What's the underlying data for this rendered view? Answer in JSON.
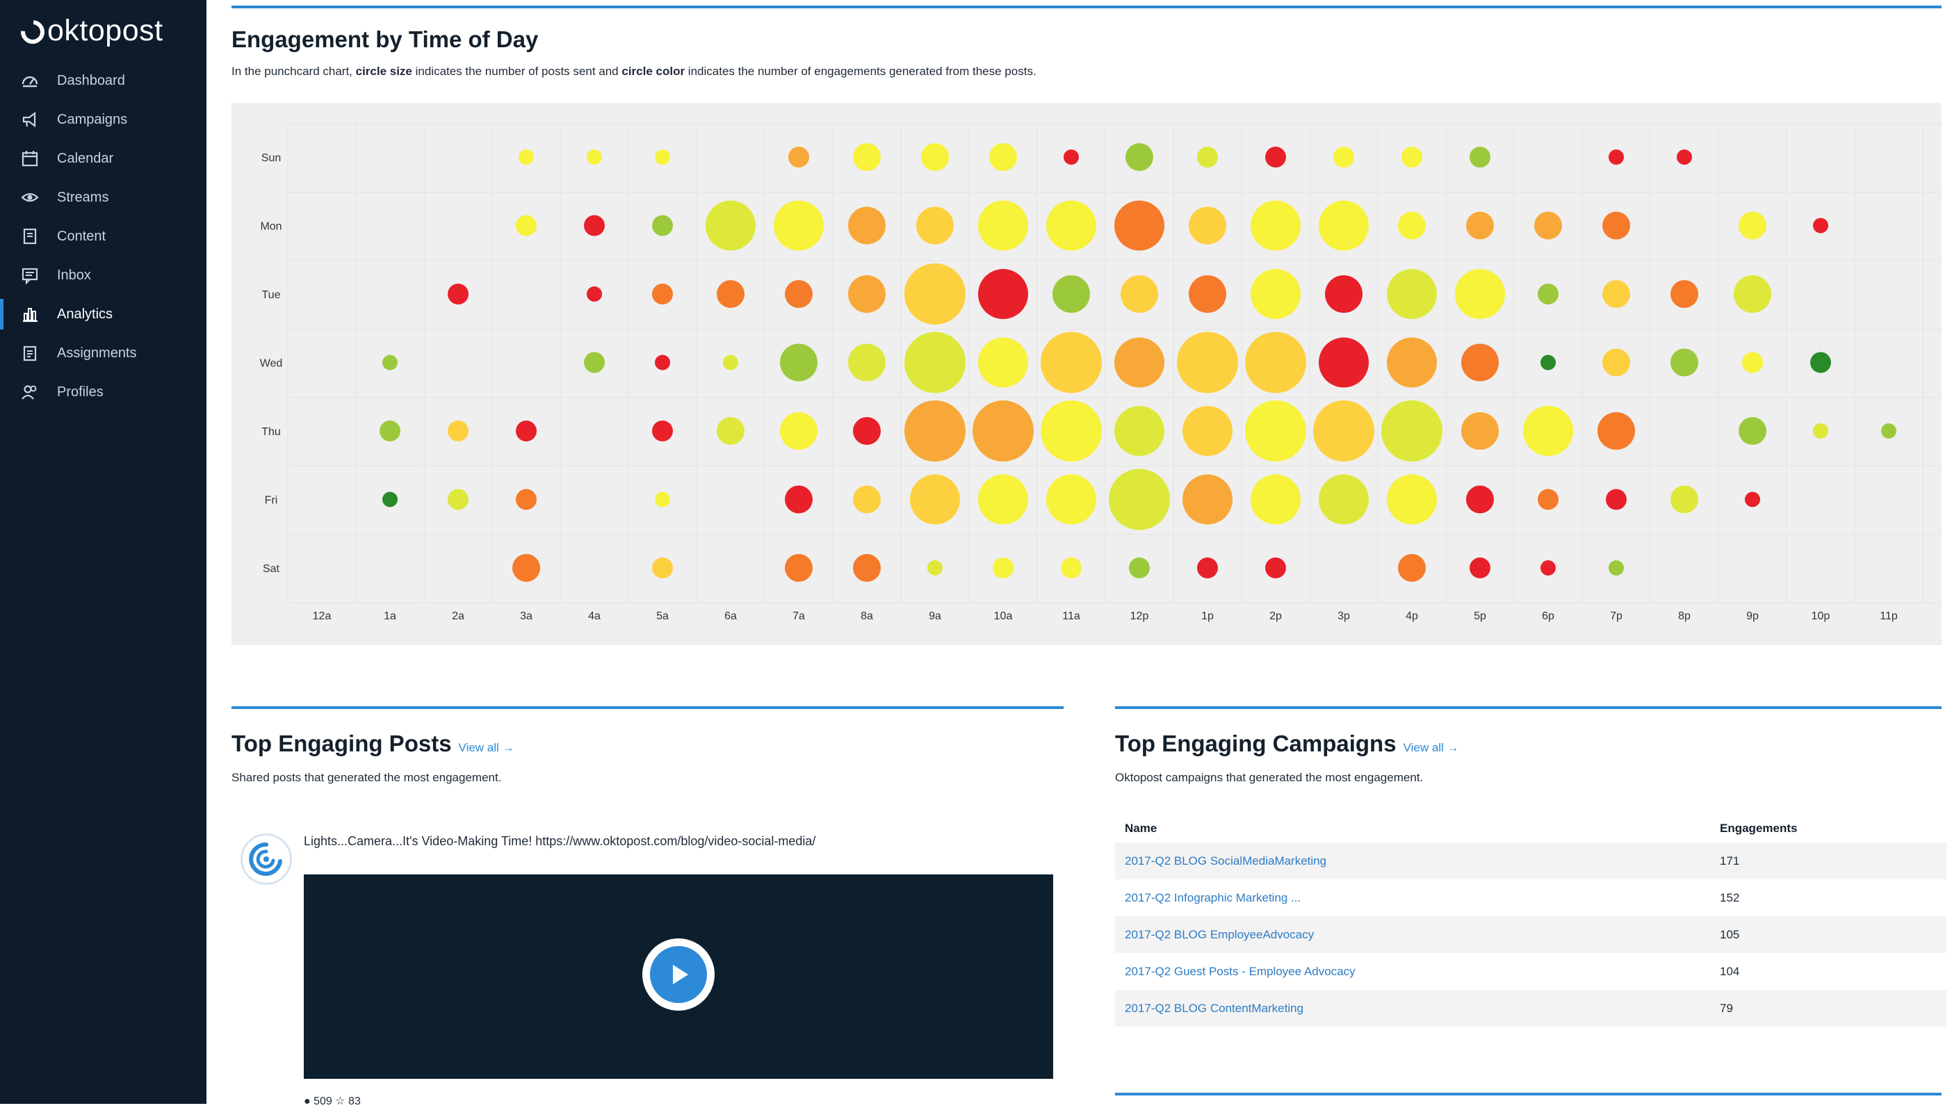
{
  "app": {
    "logo": "oktopost"
  },
  "sidebar": {
    "items": [
      {
        "label": "Dashboard",
        "icon": "dashboard-icon",
        "active": false
      },
      {
        "label": "Campaigns",
        "icon": "megaphone-icon",
        "active": false
      },
      {
        "label": "Calendar",
        "icon": "calendar-icon",
        "active": false
      },
      {
        "label": "Streams",
        "icon": "eye-icon",
        "active": false
      },
      {
        "label": "Content",
        "icon": "document-icon",
        "active": false
      },
      {
        "label": "Inbox",
        "icon": "inbox-icon",
        "active": false
      },
      {
        "label": "Analytics",
        "icon": "bar-chart-icon",
        "active": true
      },
      {
        "label": "Assignments",
        "icon": "clipboard-icon",
        "active": false
      },
      {
        "label": "Profiles",
        "icon": "users-icon",
        "active": false
      }
    ]
  },
  "engagement": {
    "title": "Engagement by Time of Day",
    "subtitle_parts": {
      "a": "In the punchcard chart, ",
      "b": "circle size",
      "c": " indicates the number of posts sent and ",
      "d": "circle color",
      "e": " indicates the number of engagements generated from these posts."
    }
  },
  "chart_data": {
    "type": "punchcard",
    "days": [
      "Sun",
      "Mon",
      "Tue",
      "Wed",
      "Thu",
      "Fri",
      "Sat"
    ],
    "hours": [
      "12a",
      "1a",
      "2a",
      "3a",
      "4a",
      "5a",
      "6a",
      "7a",
      "8a",
      "9a",
      "10a",
      "11a",
      "12p",
      "1p",
      "2p",
      "3p",
      "4p",
      "5p",
      "6p",
      "7p",
      "8p",
      "9p",
      "10p",
      "11p"
    ],
    "size_meaning": "number of posts sent",
    "color_meaning": "number of engagements generated",
    "palette": {
      "dark_green": "#2a8a2a",
      "green": "#9cc93b",
      "yellow_green": "#dde83a",
      "yellow": "#f7f23a",
      "light_orange": "#fdd040",
      "orange": "#f8a838",
      "dark_orange": "#f57a2a",
      "red": "#e8202a"
    },
    "cells": [
      [
        "Sun",
        "3a",
        1,
        "yellow"
      ],
      [
        "Sun",
        "4a",
        1,
        "yellow"
      ],
      [
        "Sun",
        "5a",
        1,
        "yellow"
      ],
      [
        "Sun",
        "7a",
        2,
        "orange"
      ],
      [
        "Sun",
        "8a",
        3,
        "yellow"
      ],
      [
        "Sun",
        "9a",
        3,
        "yellow"
      ],
      [
        "Sun",
        "10a",
        3,
        "yellow"
      ],
      [
        "Sun",
        "11a",
        1,
        "red"
      ],
      [
        "Sun",
        "12p",
        3,
        "green"
      ],
      [
        "Sun",
        "1p",
        2,
        "yellow_green"
      ],
      [
        "Sun",
        "2p",
        2,
        "red"
      ],
      [
        "Sun",
        "3p",
        2,
        "yellow"
      ],
      [
        "Sun",
        "4p",
        2,
        "yellow"
      ],
      [
        "Sun",
        "5p",
        2,
        "green"
      ],
      [
        "Sun",
        "7p",
        1,
        "red"
      ],
      [
        "Sun",
        "8p",
        1,
        "red"
      ],
      [
        "Mon",
        "3a",
        2,
        "yellow"
      ],
      [
        "Mon",
        "4a",
        2,
        "red"
      ],
      [
        "Mon",
        "5a",
        2,
        "green"
      ],
      [
        "Mon",
        "6a",
        5,
        "yellow_green"
      ],
      [
        "Mon",
        "7a",
        5,
        "yellow"
      ],
      [
        "Mon",
        "8a",
        4,
        "orange"
      ],
      [
        "Mon",
        "9a",
        4,
        "light_orange"
      ],
      [
        "Mon",
        "10a",
        5,
        "yellow"
      ],
      [
        "Mon",
        "11a",
        5,
        "yellow"
      ],
      [
        "Mon",
        "12p",
        5,
        "dark_orange"
      ],
      [
        "Mon",
        "1p",
        4,
        "light_orange"
      ],
      [
        "Mon",
        "2p",
        5,
        "yellow"
      ],
      [
        "Mon",
        "3p",
        5,
        "yellow"
      ],
      [
        "Mon",
        "4p",
        3,
        "yellow"
      ],
      [
        "Mon",
        "5p",
        3,
        "orange"
      ],
      [
        "Mon",
        "6p",
        3,
        "orange"
      ],
      [
        "Mon",
        "7p",
        3,
        "dark_orange"
      ],
      [
        "Mon",
        "9p",
        3,
        "yellow"
      ],
      [
        "Mon",
        "10p",
        1,
        "red"
      ],
      [
        "Tue",
        "2a",
        2,
        "red"
      ],
      [
        "Tue",
        "4a",
        1,
        "red"
      ],
      [
        "Tue",
        "5a",
        2,
        "dark_orange"
      ],
      [
        "Tue",
        "6a",
        3,
        "dark_orange"
      ],
      [
        "Tue",
        "7a",
        3,
        "dark_orange"
      ],
      [
        "Tue",
        "8a",
        4,
        "orange"
      ],
      [
        "Tue",
        "9a",
        6,
        "light_orange"
      ],
      [
        "Tue",
        "10a",
        5,
        "red"
      ],
      [
        "Tue",
        "11a",
        4,
        "green"
      ],
      [
        "Tue",
        "12p",
        4,
        "light_orange"
      ],
      [
        "Tue",
        "1p",
        4,
        "dark_orange"
      ],
      [
        "Tue",
        "2p",
        5,
        "yellow"
      ],
      [
        "Tue",
        "3p",
        4,
        "red"
      ],
      [
        "Tue",
        "4p",
        5,
        "yellow_green"
      ],
      [
        "Tue",
        "5p",
        5,
        "yellow"
      ],
      [
        "Tue",
        "6p",
        2,
        "green"
      ],
      [
        "Tue",
        "7p",
        3,
        "light_orange"
      ],
      [
        "Tue",
        "8p",
        3,
        "dark_orange"
      ],
      [
        "Tue",
        "9p",
        4,
        "yellow_green"
      ],
      [
        "Wed",
        "1a",
        1,
        "green"
      ],
      [
        "Wed",
        "4a",
        2,
        "green"
      ],
      [
        "Wed",
        "5a",
        1,
        "red"
      ],
      [
        "Wed",
        "6a",
        1,
        "yellow_green"
      ],
      [
        "Wed",
        "7a",
        4,
        "green"
      ],
      [
        "Wed",
        "8a",
        4,
        "yellow_green"
      ],
      [
        "Wed",
        "9a",
        6,
        "yellow_green"
      ],
      [
        "Wed",
        "10a",
        5,
        "yellow"
      ],
      [
        "Wed",
        "11a",
        6,
        "light_orange"
      ],
      [
        "Wed",
        "12p",
        5,
        "orange"
      ],
      [
        "Wed",
        "1p",
        6,
        "light_orange"
      ],
      [
        "Wed",
        "2p",
        6,
        "light_orange"
      ],
      [
        "Wed",
        "3p",
        5,
        "red"
      ],
      [
        "Wed",
        "4p",
        5,
        "orange"
      ],
      [
        "Wed",
        "5p",
        4,
        "dark_orange"
      ],
      [
        "Wed",
        "6p",
        1,
        "dark_green"
      ],
      [
        "Wed",
        "7p",
        3,
        "light_orange"
      ],
      [
        "Wed",
        "8p",
        3,
        "green"
      ],
      [
        "Wed",
        "9p",
        2,
        "yellow"
      ],
      [
        "Wed",
        "10p",
        2,
        "dark_green"
      ],
      [
        "Thu",
        "1a",
        2,
        "green"
      ],
      [
        "Thu",
        "2a",
        2,
        "light_orange"
      ],
      [
        "Thu",
        "3a",
        2,
        "red"
      ],
      [
        "Thu",
        "5a",
        2,
        "red"
      ],
      [
        "Thu",
        "6a",
        3,
        "yellow_green"
      ],
      [
        "Thu",
        "7a",
        4,
        "yellow"
      ],
      [
        "Thu",
        "8a",
        3,
        "red"
      ],
      [
        "Thu",
        "9a",
        6,
        "orange"
      ],
      [
        "Thu",
        "10a",
        6,
        "orange"
      ],
      [
        "Thu",
        "11a",
        6,
        "yellow"
      ],
      [
        "Thu",
        "12p",
        5,
        "yellow_green"
      ],
      [
        "Thu",
        "1p",
        5,
        "light_orange"
      ],
      [
        "Thu",
        "2p",
        6,
        "yellow"
      ],
      [
        "Thu",
        "3p",
        6,
        "light_orange"
      ],
      [
        "Thu",
        "4p",
        6,
        "yellow_green"
      ],
      [
        "Thu",
        "5p",
        4,
        "orange"
      ],
      [
        "Thu",
        "6p",
        5,
        "yellow"
      ],
      [
        "Thu",
        "7p",
        4,
        "dark_orange"
      ],
      [
        "Thu",
        "9p",
        3,
        "green"
      ],
      [
        "Thu",
        "10p",
        1,
        "yellow_green"
      ],
      [
        "Thu",
        "11p",
        1,
        "green"
      ],
      [
        "Fri",
        "1a",
        1,
        "dark_green"
      ],
      [
        "Fri",
        "2a",
        2,
        "yellow_green"
      ],
      [
        "Fri",
        "3a",
        2,
        "dark_orange"
      ],
      [
        "Fri",
        "5a",
        1,
        "yellow"
      ],
      [
        "Fri",
        "7a",
        3,
        "red"
      ],
      [
        "Fri",
        "8a",
        3,
        "light_orange"
      ],
      [
        "Fri",
        "9a",
        5,
        "light_orange"
      ],
      [
        "Fri",
        "10a",
        5,
        "yellow"
      ],
      [
        "Fri",
        "11a",
        5,
        "yellow"
      ],
      [
        "Fri",
        "12p",
        6,
        "yellow_green"
      ],
      [
        "Fri",
        "1p",
        5,
        "orange"
      ],
      [
        "Fri",
        "2p",
        5,
        "yellow"
      ],
      [
        "Fri",
        "3p",
        5,
        "yellow_green"
      ],
      [
        "Fri",
        "4p",
        5,
        "yellow"
      ],
      [
        "Fri",
        "5p",
        3,
        "red"
      ],
      [
        "Fri",
        "6p",
        2,
        "dark_orange"
      ],
      [
        "Fri",
        "7p",
        2,
        "red"
      ],
      [
        "Fri",
        "8p",
        3,
        "yellow_green"
      ],
      [
        "Fri",
        "9p",
        1,
        "red"
      ],
      [
        "Sat",
        "3a",
        3,
        "dark_orange"
      ],
      [
        "Sat",
        "5a",
        2,
        "light_orange"
      ],
      [
        "Sat",
        "7a",
        3,
        "dark_orange"
      ],
      [
        "Sat",
        "8a",
        3,
        "dark_orange"
      ],
      [
        "Sat",
        "9a",
        1,
        "yellow_green"
      ],
      [
        "Sat",
        "10a",
        2,
        "yellow"
      ],
      [
        "Sat",
        "11a",
        2,
        "yellow"
      ],
      [
        "Sat",
        "12p",
        2,
        "green"
      ],
      [
        "Sat",
        "1p",
        2,
        "red"
      ],
      [
        "Sat",
        "2p",
        2,
        "red"
      ],
      [
        "Sat",
        "4p",
        3,
        "dark_orange"
      ],
      [
        "Sat",
        "5p",
        2,
        "red"
      ],
      [
        "Sat",
        "6p",
        1,
        "red"
      ],
      [
        "Sat",
        "7p",
        1,
        "green"
      ]
    ]
  },
  "posts": {
    "title": "Top Engaging Posts",
    "view_all": "View all →",
    "subtitle": "Shared posts that generated the most engagement.",
    "items": [
      {
        "text": "Lights...Camera...It's Video-Making Time! https://www.oktopost.com/blog/video-social-media/",
        "media": "video",
        "stats": "● 509   ☆ 83"
      }
    ]
  },
  "campaigns": {
    "title": "Top Engaging Campaigns",
    "view_all": "View all →",
    "subtitle": "Oktopost campaigns that generated the most engagement.",
    "columns": [
      "Name",
      "Engagements"
    ],
    "rows": [
      {
        "name": "2017-Q2 BLOG SocialMediaMarketing",
        "engagements": "171"
      },
      {
        "name": "2017-Q2 Infographic Marketing ...",
        "engagements": "152"
      },
      {
        "name": "2017-Q2 BLOG EmployeeAdvocacy",
        "engagements": "105"
      },
      {
        "name": "2017-Q2 Guest Posts - Employee Advocacy",
        "engagements": "104"
      },
      {
        "name": "2017-Q2 BLOG ContentMarketing",
        "engagements": "79"
      }
    ]
  }
}
